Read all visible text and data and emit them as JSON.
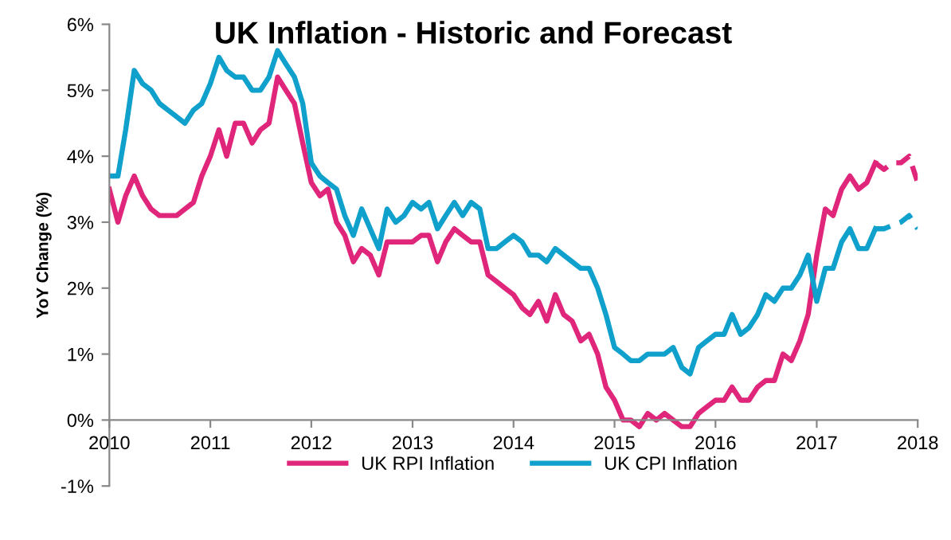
{
  "chart_data": {
    "type": "line",
    "title": "UK Inflation - Historic and Forecast",
    "ylabel": "YoY Change (%)",
    "xlim": [
      "2010",
      "2018"
    ],
    "xticks": [
      "2010",
      "2011",
      "2012",
      "2013",
      "2014",
      "2015",
      "2016",
      "2017",
      "2018"
    ],
    "ylim": [
      -1,
      6
    ],
    "yticks": [
      {
        "value": -1,
        "label": "-1%"
      },
      {
        "value": 0,
        "label": "0%"
      },
      {
        "value": 1,
        "label": "1%"
      },
      {
        "value": 2,
        "label": "2%"
      },
      {
        "value": 3,
        "label": "3%"
      },
      {
        "value": 4,
        "label": "4%"
      },
      {
        "value": 5,
        "label": "5%"
      },
      {
        "value": 6,
        "label": "6%"
      }
    ],
    "grid": false,
    "legend": "bottom",
    "marker": "none",
    "x": [
      "2010-01",
      "2010-02",
      "2010-03",
      "2010-04",
      "2010-05",
      "2010-06",
      "2010-07",
      "2010-08",
      "2010-09",
      "2010-10",
      "2010-11",
      "2010-12",
      "2011-01",
      "2011-02",
      "2011-03",
      "2011-04",
      "2011-05",
      "2011-06",
      "2011-07",
      "2011-08",
      "2011-09",
      "2011-10",
      "2011-11",
      "2011-12",
      "2012-01",
      "2012-02",
      "2012-03",
      "2012-04",
      "2012-05",
      "2012-06",
      "2012-07",
      "2012-08",
      "2012-09",
      "2012-10",
      "2012-11",
      "2012-12",
      "2013-01",
      "2013-02",
      "2013-03",
      "2013-04",
      "2013-05",
      "2013-06",
      "2013-07",
      "2013-08",
      "2013-09",
      "2013-10",
      "2013-11",
      "2013-12",
      "2014-01",
      "2014-02",
      "2014-03",
      "2014-04",
      "2014-05",
      "2014-06",
      "2014-07",
      "2014-08",
      "2014-09",
      "2014-10",
      "2014-11",
      "2014-12",
      "2015-01",
      "2015-02",
      "2015-03",
      "2015-04",
      "2015-05",
      "2015-06",
      "2015-07",
      "2015-08",
      "2015-09",
      "2015-10",
      "2015-11",
      "2015-12",
      "2016-01",
      "2016-02",
      "2016-03",
      "2016-04",
      "2016-05",
      "2016-06",
      "2016-07",
      "2016-08",
      "2016-09",
      "2016-10",
      "2016-11",
      "2016-12",
      "2017-01",
      "2017-02",
      "2017-03",
      "2017-04",
      "2017-05",
      "2017-06",
      "2017-07",
      "2017-08"
    ],
    "series": [
      {
        "name": "UK RPI Inflation",
        "color": "#e0267a",
        "line_style": "solid",
        "values": [
          3.5,
          3.0,
          3.4,
          3.7,
          3.4,
          3.2,
          3.1,
          3.1,
          3.1,
          3.2,
          3.3,
          3.7,
          4.0,
          4.4,
          4.0,
          4.5,
          4.5,
          4.2,
          4.4,
          4.5,
          5.2,
          5.0,
          4.8,
          4.2,
          3.6,
          3.4,
          3.5,
          3.0,
          2.8,
          2.4,
          2.6,
          2.5,
          2.2,
          2.7,
          2.7,
          2.7,
          2.7,
          2.8,
          2.8,
          2.4,
          2.7,
          2.9,
          2.8,
          2.7,
          2.7,
          2.2,
          2.1,
          2.0,
          1.9,
          1.7,
          1.6,
          1.8,
          1.5,
          1.9,
          1.6,
          1.5,
          1.2,
          1.3,
          1.0,
          0.5,
          0.3,
          0.0,
          0.0,
          -0.1,
          0.1,
          0.0,
          0.1,
          0.0,
          -0.1,
          -0.1,
          0.1,
          0.2,
          0.3,
          0.3,
          0.5,
          0.3,
          0.3,
          0.5,
          0.6,
          0.6,
          1.0,
          0.9,
          1.2,
          1.6,
          2.5,
          3.2,
          3.1,
          3.5,
          3.7,
          3.5,
          3.6,
          3.9
        ]
      },
      {
        "name": "UK CPI Inflation",
        "color": "#0fa0cc",
        "line_style": "solid",
        "values": [
          3.7,
          3.7,
          4.4,
          5.3,
          5.1,
          5.0,
          4.8,
          4.7,
          4.6,
          4.5,
          4.7,
          4.8,
          5.1,
          5.5,
          5.3,
          5.2,
          5.2,
          5.0,
          5.0,
          5.2,
          5.6,
          5.4,
          5.2,
          4.8,
          3.9,
          3.7,
          3.6,
          3.5,
          3.1,
          2.8,
          3.2,
          2.9,
          2.6,
          3.2,
          3.0,
          3.1,
          3.3,
          3.2,
          3.3,
          2.9,
          3.1,
          3.3,
          3.1,
          3.3,
          3.2,
          2.6,
          2.6,
          2.7,
          2.8,
          2.7,
          2.5,
          2.5,
          2.4,
          2.6,
          2.5,
          2.4,
          2.3,
          2.3,
          2.0,
          1.6,
          1.1,
          1.0,
          0.9,
          0.9,
          1.0,
          1.0,
          1.0,
          1.1,
          0.8,
          0.7,
          1.1,
          1.2,
          1.3,
          1.3,
          1.6,
          1.3,
          1.4,
          1.6,
          1.9,
          1.8,
          2.0,
          2.0,
          2.2,
          2.5,
          1.8,
          2.3,
          2.3,
          2.7,
          2.9,
          2.6,
          2.6,
          2.9
        ]
      },
      {
        "color": "#e0267a",
        "line_style": "dashed",
        "x": [
          "2017-08",
          "2017-09",
          "2017-10",
          "2017-11",
          "2017-12",
          "2018-01"
        ],
        "values": [
          3.9,
          3.8,
          3.9,
          3.9,
          4.0,
          3.6
        ]
      },
      {
        "color": "#0fa0cc",
        "line_style": "dashed",
        "x": [
          "2017-08",
          "2017-09",
          "2017-10",
          "2017-11",
          "2017-12",
          "2018-01"
        ],
        "values": [
          2.9,
          2.9,
          2.95,
          3.0,
          3.1,
          2.9
        ]
      }
    ]
  }
}
